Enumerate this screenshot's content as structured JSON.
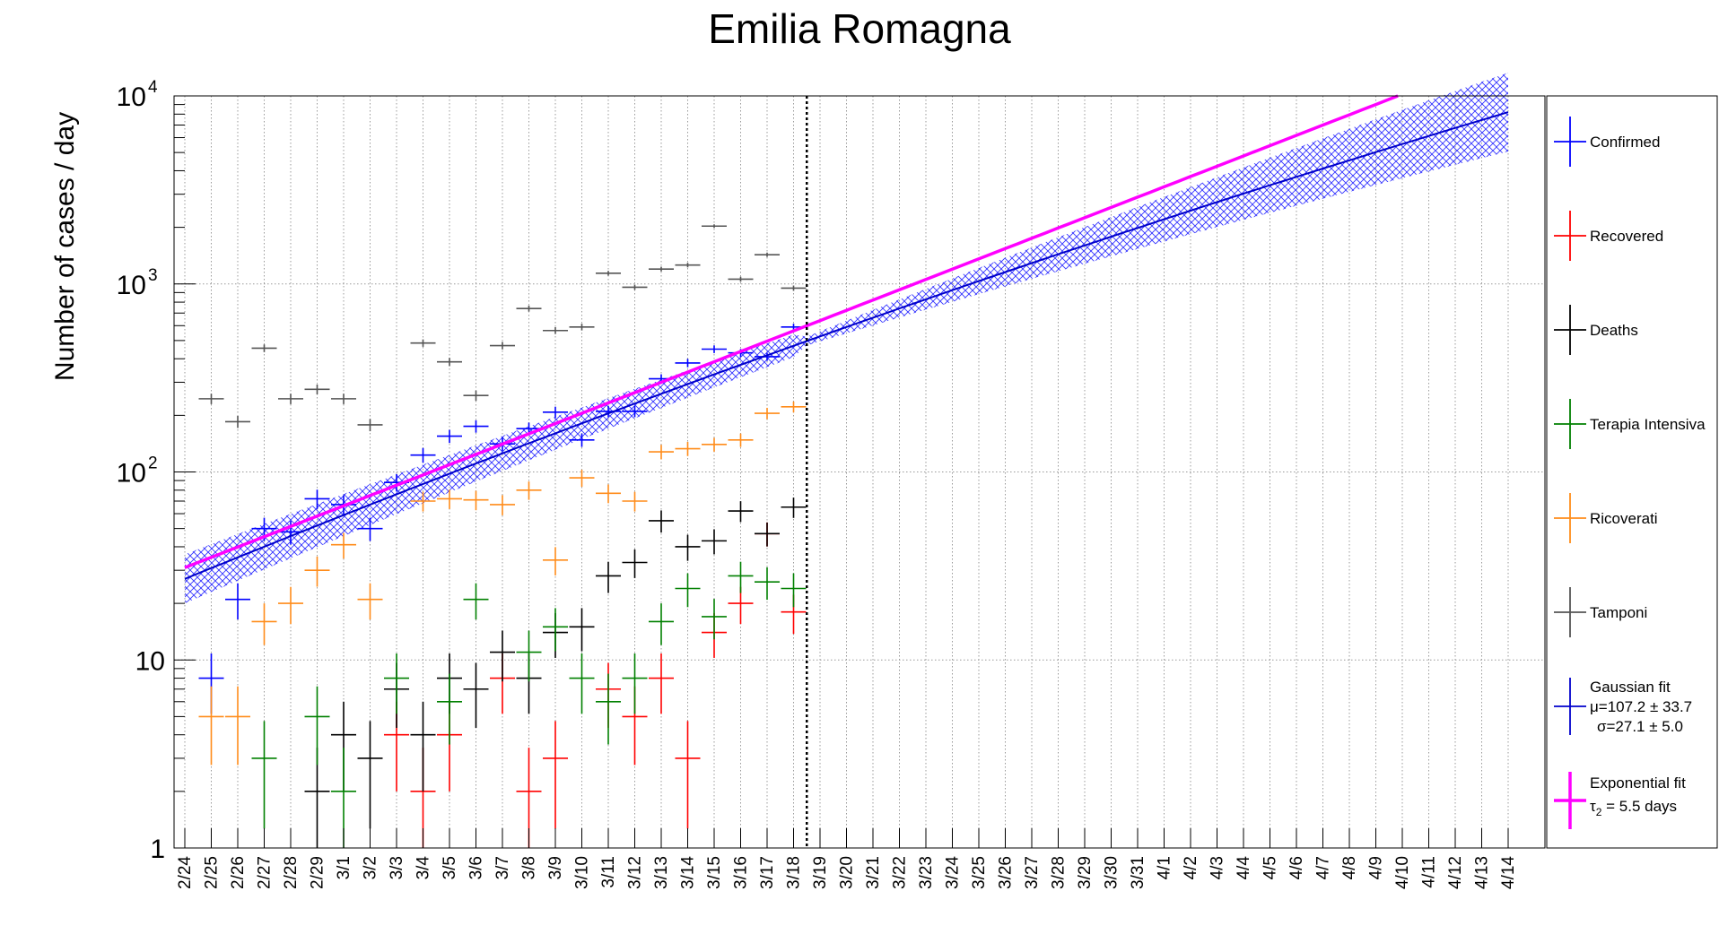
{
  "chart_data": {
    "type": "scatter",
    "title": "Emilia Romagna",
    "ylabel": "Number of cases / day",
    "xlabel": "",
    "yscale": "log",
    "ylim": [
      1,
      10000
    ],
    "grid": true,
    "legend_position": "right",
    "y_ticks": [
      {
        "base": "1",
        "sup": ""
      },
      {
        "base": "10",
        "sup": ""
      },
      {
        "base": "10",
        "sup": "2"
      },
      {
        "base": "10",
        "sup": "3"
      },
      {
        "base": "10",
        "sup": "4"
      }
    ],
    "categories": [
      "2/24",
      "2/25",
      "2/26",
      "2/27",
      "2/28",
      "2/29",
      "3/1",
      "3/2",
      "3/3",
      "3/4",
      "3/5",
      "3/6",
      "3/7",
      "3/8",
      "3/9",
      "3/10",
      "3/11",
      "3/12",
      "3/13",
      "3/14",
      "3/15",
      "3/16",
      "3/17",
      "3/18",
      "3/19",
      "3/20",
      "3/21",
      "3/22",
      "3/23",
      "3/24",
      "3/25",
      "3/26",
      "3/27",
      "3/28",
      "3/29",
      "3/30",
      "3/31",
      "4/1",
      "4/2",
      "4/3",
      "4/4",
      "4/5",
      "4/6",
      "4/7",
      "4/8",
      "4/9",
      "4/10",
      "4/11",
      "4/12",
      "4/13",
      "4/14"
    ],
    "vertical_marker": "3/18",
    "series": [
      {
        "name": "Confirmed",
        "color": "#0000ff",
        "values": [
          null,
          8,
          21,
          50,
          48,
          72,
          67,
          50,
          88,
          123,
          155,
          175,
          141,
          170,
          208,
          148,
          210,
          210,
          313,
          380,
          450,
          430,
          410,
          590
        ]
      },
      {
        "name": "Recovered",
        "color": "#ff0000",
        "values": [
          null,
          null,
          null,
          null,
          null,
          null,
          null,
          null,
          4,
          2,
          4,
          null,
          8,
          2,
          3,
          null,
          7,
          5,
          8,
          3,
          14,
          20,
          47,
          18
        ]
      },
      {
        "name": "Deaths",
        "color": "#000000",
        "values": [
          null,
          null,
          null,
          null,
          null,
          2,
          4,
          3,
          7,
          4,
          8,
          7,
          11,
          8,
          14,
          15,
          28,
          33,
          55,
          40,
          43,
          62,
          47,
          65
        ]
      },
      {
        "name": "Terapia Intensiva",
        "color": "#008000",
        "values": [
          null,
          null,
          null,
          3,
          null,
          5,
          2,
          null,
          8,
          null,
          6,
          21,
          null,
          11,
          15,
          8,
          6,
          8,
          16,
          24,
          17,
          28,
          26,
          24
        ]
      },
      {
        "name": "Ricoverati",
        "color": "#ff8c1a",
        "values": [
          null,
          5,
          5,
          16,
          20,
          30,
          41,
          21,
          null,
          70,
          72,
          71,
          67,
          80,
          34,
          93,
          77,
          70,
          128,
          133,
          140,
          148,
          205,
          222
        ]
      },
      {
        "name": "Tamponi",
        "color": "#555555",
        "values": [
          null,
          245,
          185,
          455,
          245,
          275,
          245,
          178,
          null,
          485,
          385,
          255,
          470,
          740,
          565,
          590,
          1140,
          960,
          1200,
          1260,
          2030,
          1060,
          1430,
          950
        ]
      }
    ],
    "fits": [
      {
        "name": "Gaussian fit",
        "color": "#0000cc",
        "band_color": "#3333ff",
        "params": [
          "μ=107.2 ± 33.7",
          "σ=27.1 ± 5.0"
        ]
      },
      {
        "name": "Exponential fit",
        "color": "#ff00ff",
        "param_main": "τ",
        "param_sub": "2",
        "param_rest": " = 5.5 days"
      }
    ]
  }
}
